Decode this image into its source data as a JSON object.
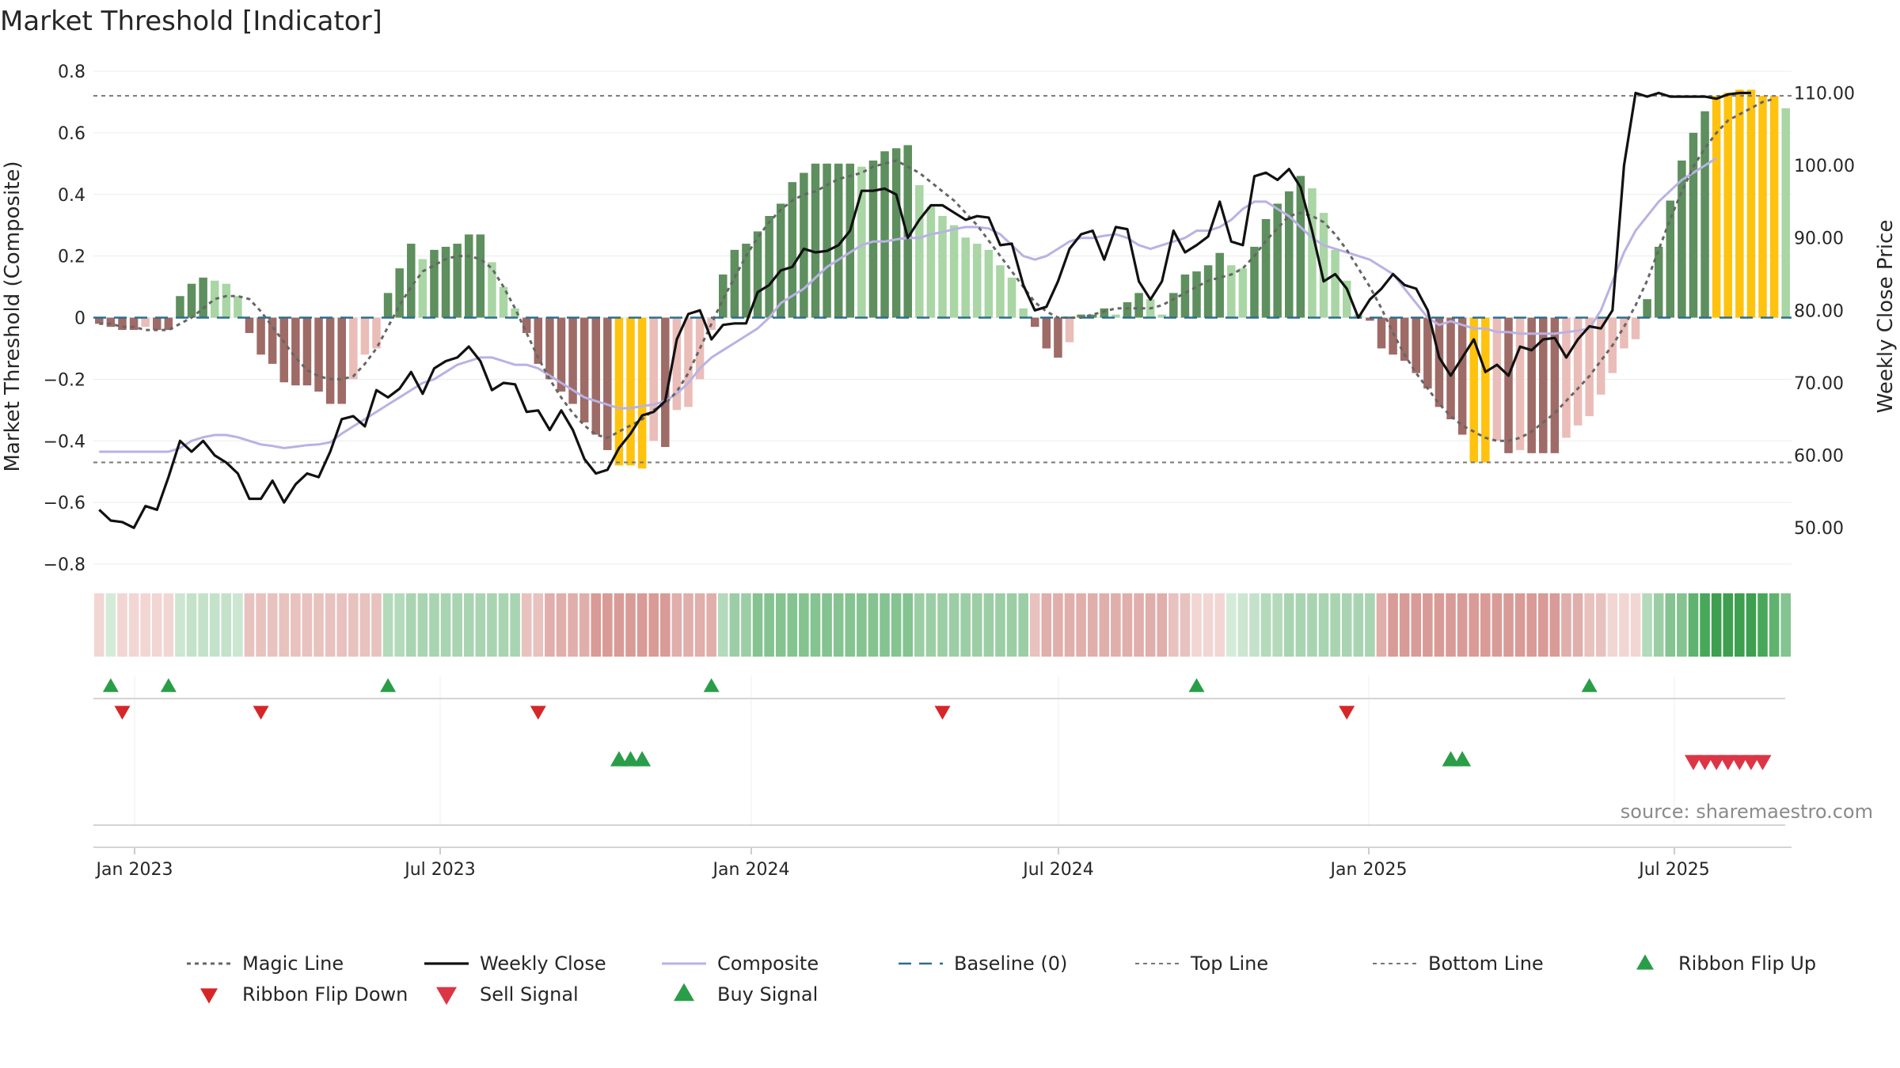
{
  "chart_data": {
    "type": "bar",
    "title": "Market Threshold [Indicator]",
    "ylabel_left": "Market Threshold (Composite)",
    "ylabel_right": "Weekly Close Price",
    "ylim_left": [
      -0.8,
      0.8
    ],
    "ylim_right": [
      45,
      113
    ],
    "left_ticks": [
      "0.8",
      "0.6",
      "0.4",
      "0.2",
      "0",
      "−0.2",
      "−0.4",
      "−0.6",
      "−0.8"
    ],
    "right_ticks": [
      "110.00",
      "100.00",
      "90.00",
      "80.00",
      "70.00",
      "60.00",
      "50.00"
    ],
    "x_labels": [
      "Jan 2023",
      "Jul 2023",
      "Jan 2024",
      "Jul 2024",
      "Jan 2025",
      "Jul 2025"
    ],
    "top_line": 0.72,
    "bottom_line": -0.47,
    "grid": true,
    "source_text": "source: sharemaestro.com",
    "histogram_values": [
      -0.02,
      -0.03,
      -0.04,
      -0.04,
      -0.03,
      -0.04,
      -0.04,
      0.07,
      0.11,
      0.13,
      0.12,
      0.11,
      0.07,
      -0.05,
      -0.12,
      -0.15,
      -0.21,
      -0.22,
      -0.22,
      -0.24,
      -0.28,
      -0.28,
      -0.2,
      -0.12,
      -0.1,
      0.08,
      0.16,
      0.24,
      0.19,
      0.22,
      0.23,
      0.24,
      0.27,
      0.27,
      0.18,
      0.1,
      0.03,
      -0.05,
      -0.15,
      -0.2,
      -0.24,
      -0.28,
      -0.34,
      -0.38,
      -0.43,
      -0.48,
      -0.48,
      -0.49,
      -0.4,
      -0.42,
      -0.3,
      -0.29,
      -0.2,
      -0.04,
      0.14,
      0.22,
      0.24,
      0.28,
      0.33,
      0.37,
      0.44,
      0.47,
      0.5,
      0.5,
      0.5,
      0.5,
      0.49,
      0.51,
      0.54,
      0.55,
      0.56,
      0.43,
      0.36,
      0.33,
      0.3,
      0.26,
      0.24,
      0.22,
      0.17,
      0.13,
      0.03,
      -0.03,
      -0.1,
      -0.13,
      -0.08,
      0.01,
      0.01,
      0.03,
      0.01,
      0.05,
      0.08,
      0.06,
      0.01,
      0.08,
      0.14,
      0.15,
      0.17,
      0.21,
      0.17,
      0.16,
      0.23,
      0.32,
      0.37,
      0.41,
      0.46,
      0.42,
      0.34,
      0.22,
      0.12,
      0.01,
      -0.01,
      -0.1,
      -0.12,
      -0.14,
      -0.18,
      -0.23,
      -0.29,
      -0.33,
      -0.38,
      -0.47,
      -0.47,
      -0.4,
      -0.44,
      -0.43,
      -0.44,
      -0.44,
      -0.44,
      -0.39,
      -0.35,
      -0.32,
      -0.25,
      -0.18,
      -0.1,
      -0.07,
      0.06,
      0.23,
      0.38,
      0.51,
      0.6,
      0.67,
      0.72,
      0.73,
      0.74,
      0.74,
      0.72,
      0.72,
      0.68
    ],
    "weekly_close": [
      52.5,
      51,
      50.8,
      50,
      53,
      52.5,
      57,
      62,
      60.5,
      62,
      60,
      59,
      57.5,
      54,
      54,
      56.5,
      53.5,
      56,
      57.5,
      57,
      60.5,
      65,
      65.4,
      64,
      69,
      68,
      69.2,
      71.5,
      68.5,
      72,
      73,
      73.5,
      75,
      73,
      69,
      70,
      69.8,
      66,
      66.2,
      63.5,
      66.2,
      63.5,
      59.5,
      57.5,
      58,
      61,
      63,
      65.5,
      66,
      67.5,
      76,
      79.5,
      80,
      76,
      78,
      78.2,
      78.2,
      82.5,
      83.5,
      85.5,
      86,
      88.5,
      88,
      88.2,
      89,
      91,
      96.5,
      96.5,
      96.8,
      96,
      90,
      92.5,
      94.5,
      94.5,
      93.5,
      92.5,
      93,
      92.8,
      89,
      89.2,
      83.5,
      80,
      80.5,
      84,
      88.5,
      90.5,
      91,
      87,
      91.5,
      91.2,
      84,
      81.5,
      84,
      91,
      88,
      89,
      90.2,
      95,
      89.5,
      89,
      98.5,
      99,
      98,
      99.5,
      97,
      91,
      84,
      85,
      83,
      79,
      81.5,
      83,
      85,
      83.5,
      83,
      80,
      73.5,
      71,
      73.5,
      76,
      71.5,
      72.5,
      71,
      75,
      74.5,
      76,
      76.2,
      73.5,
      76,
      77.8,
      77.5,
      80,
      100,
      110,
      109.5,
      110,
      109.5,
      109.5,
      109.5,
      109.5,
      109.2,
      109.8,
      110,
      110
    ],
    "composite": [
      60.5,
      60.5,
      60.5,
      60.5,
      60.5,
      60.5,
      60.5,
      61,
      62,
      62.5,
      62.8,
      62.8,
      62.5,
      62,
      61.5,
      61.3,
      61,
      61.2,
      61.4,
      61.5,
      61.8,
      63,
      64,
      65,
      66,
      67,
      68,
      69,
      70,
      70.5,
      71.5,
      72.5,
      73,
      73.5,
      73.5,
      73,
      72.5,
      72.5,
      72,
      71,
      70,
      69,
      68,
      67.5,
      67,
      66.5,
      66.5,
      66.8,
      67,
      67.5,
      68.5,
      70,
      72,
      73.5,
      74.5,
      75.5,
      76.5,
      77.5,
      79,
      81,
      82,
      83,
      84.5,
      86,
      87,
      88,
      89,
      89.5,
      89.5,
      89.8,
      90,
      90,
      90.5,
      90.8,
      91.2,
      91.5,
      91.5,
      91.3,
      90.5,
      89,
      87.5,
      87,
      87.5,
      88.5,
      89.5,
      90,
      90,
      90.3,
      90.5,
      90,
      89,
      88.5,
      89,
      89.5,
      90,
      91,
      91,
      91.5,
      92.5,
      94,
      95,
      95,
      94,
      93,
      91.5,
      90,
      89,
      88.5,
      88,
      87.5,
      87,
      86,
      85,
      83,
      81,
      79,
      78,
      78.5,
      78,
      77.5,
      77.5,
      77,
      77,
      76.8,
      76.8,
      76.8,
      76.8,
      77,
      77.2,
      77.5,
      80,
      84,
      88,
      91,
      93,
      95,
      96.5,
      98,
      99,
      100,
      101
    ],
    "magic_line": [
      -0.02,
      -0.02,
      -0.03,
      -0.03,
      -0.04,
      -0.04,
      -0.04,
      -0.02,
      0,
      0.03,
      0.06,
      0.07,
      0.07,
      0.06,
      0.02,
      -0.03,
      -0.08,
      -0.13,
      -0.17,
      -0.19,
      -0.2,
      -0.2,
      -0.19,
      -0.15,
      -0.1,
      -0.03,
      0.04,
      0.1,
      0.15,
      0.17,
      0.19,
      0.2,
      0.2,
      0.19,
      0.16,
      0.1,
      0.03,
      -0.05,
      -0.13,
      -0.2,
      -0.26,
      -0.31,
      -0.35,
      -0.38,
      -0.39,
      -0.37,
      -0.35,
      -0.33,
      -0.3,
      -0.28,
      -0.24,
      -0.18,
      -0.1,
      -0.02,
      0.06,
      0.13,
      0.2,
      0.26,
      0.31,
      0.35,
      0.38,
      0.4,
      0.41,
      0.43,
      0.45,
      0.46,
      0.47,
      0.49,
      0.5,
      0.51,
      0.49,
      0.47,
      0.44,
      0.41,
      0.38,
      0.34,
      0.3,
      0.25,
      0.2,
      0.15,
      0.1,
      0.05,
      0.02,
      0,
      0,
      0,
      0.01,
      0.02,
      0.03,
      0.03,
      0.03,
      0.03,
      0.04,
      0.06,
      0.08,
      0.1,
      0.12,
      0.13,
      0.14,
      0.16,
      0.2,
      0.25,
      0.29,
      0.33,
      0.34,
      0.33,
      0.31,
      0.27,
      0.22,
      0.16,
      0.1,
      0.03,
      -0.05,
      -0.12,
      -0.18,
      -0.23,
      -0.28,
      -0.32,
      -0.35,
      -0.37,
      -0.39,
      -0.4,
      -0.4,
      -0.39,
      -0.37,
      -0.34,
      -0.31,
      -0.27,
      -0.23,
      -0.19,
      -0.14,
      -0.09,
      -0.03,
      0.04,
      0.12,
      0.22,
      0.32,
      0.41,
      0.49,
      0.55,
      0.6,
      0.64,
      0.66,
      0.68,
      0.7,
      0.71
    ],
    "ribbon_colors": [
      "#f2d6d4",
      "#d5ebd9",
      "#f2d6d4",
      "#f2d6d4",
      "#f2d6d4",
      "#f2d6d4",
      "#f2d6d4",
      "#cce6d1",
      "#c4e2ca",
      "#c4e2ca",
      "#c4e2ca",
      "#c4e2ca",
      "#cce6d1",
      "#e8c2bf",
      "#e8c2bf",
      "#e8c2bf",
      "#e8c2bf",
      "#e8c2bf",
      "#e8c2bf",
      "#e8c2bf",
      "#e8c2bf",
      "#e8c2bf",
      "#e8c2bf",
      "#e8c2bf",
      "#e8c2bf",
      "#b3dabb",
      "#b3dabb",
      "#a9d4b2",
      "#a9d4b2",
      "#a9d4b2",
      "#a9d4b2",
      "#a9d4b2",
      "#a9d4b2",
      "#a9d4b2",
      "#a9d4b2",
      "#a9d4b2",
      "#a9d4b2",
      "#e8c2bf",
      "#e8c2bf",
      "#e0aeab",
      "#e0aeab",
      "#e0aeab",
      "#e0aeab",
      "#d99b97",
      "#d99b97",
      "#d99b97",
      "#d99b97",
      "#d99b97",
      "#d99b97",
      "#d99b97",
      "#e0aeab",
      "#e0aeab",
      "#e0aeab",
      "#e0aeab",
      "#b3dabb",
      "#9ccea6",
      "#9ccea6",
      "#85c391",
      "#85c391",
      "#85c391",
      "#85c391",
      "#85c391",
      "#85c391",
      "#85c391",
      "#85c391",
      "#85c391",
      "#85c391",
      "#85c391",
      "#85c391",
      "#85c391",
      "#85c391",
      "#9ccea6",
      "#9ccea6",
      "#9ccea6",
      "#9ccea6",
      "#9ccea6",
      "#9ccea6",
      "#9ccea6",
      "#9ccea6",
      "#9ccea6",
      "#9ccea6",
      "#e8c2bf",
      "#e0aeab",
      "#e0aeab",
      "#e0aeab",
      "#e0aeab",
      "#e0aeab",
      "#e0aeab",
      "#e0aeab",
      "#e0aeab",
      "#e0aeab",
      "#e0aeab",
      "#e0aeab",
      "#e8c2bf",
      "#e8c2bf",
      "#f2d6d4",
      "#f2d6d4",
      "#f2d6d4",
      "#d5ebd9",
      "#cce6d1",
      "#c4e2ca",
      "#b3dabb",
      "#b3dabb",
      "#a9d4b2",
      "#a9d4b2",
      "#a9d4b2",
      "#a9d4b2",
      "#a9d4b2",
      "#a9d4b2",
      "#a9d4b2",
      "#a9d4b2",
      "#e0aeab",
      "#d99b97",
      "#d99b97",
      "#d99b97",
      "#d99b97",
      "#d99b97",
      "#d99b97",
      "#d99b97",
      "#d99b97",
      "#d99b97",
      "#d99b97",
      "#d99b97",
      "#d99b97",
      "#d99b97",
      "#d99b97",
      "#d99b97",
      "#e0aeab",
      "#e0aeab",
      "#e8c2bf",
      "#e8c2bf",
      "#f2d6d4",
      "#f2d6d4",
      "#f2d6d4",
      "#b3dabb",
      "#9ccea6",
      "#85c391",
      "#85c391",
      "#5fb36e",
      "#48a85a",
      "#3d9f4f",
      "#3d9f4f",
      "#3d9f4f",
      "#3d9f4f",
      "#48a85a",
      "#5fb36e",
      "#85c391"
    ],
    "ribbon_flip_up": [
      1,
      6,
      25,
      53,
      95,
      129
    ],
    "ribbon_flip_down": [
      2,
      14,
      38,
      73,
      108
    ],
    "buy_signal": [
      45,
      46,
      47,
      117,
      118
    ],
    "sell_signal": [
      138,
      139,
      140,
      141,
      142,
      143,
      144
    ],
    "legend": [
      "Magic Line",
      "Weekly Close",
      "Composite",
      "Baseline (0)",
      "Top Line",
      "Bottom Line",
      "Ribbon Flip Up",
      "Ribbon Flip Down",
      "Sell Signal",
      "Buy Signal"
    ],
    "colors": {
      "pos_strong": "#5e8f5e",
      "pos_weak": "#a9d6a4",
      "neg_strong": "#9e6b67",
      "neg_weak": "#eabdb8",
      "extreme": "#ffc20e",
      "close": "#111111",
      "composite": "#b9b2e3",
      "magic": "#666666",
      "baseline": "#2c6e8f",
      "flip_up": "#2a9d48",
      "flip_down": "#d62728",
      "sell": "#dc3545",
      "buy": "#2a9d48"
    }
  }
}
